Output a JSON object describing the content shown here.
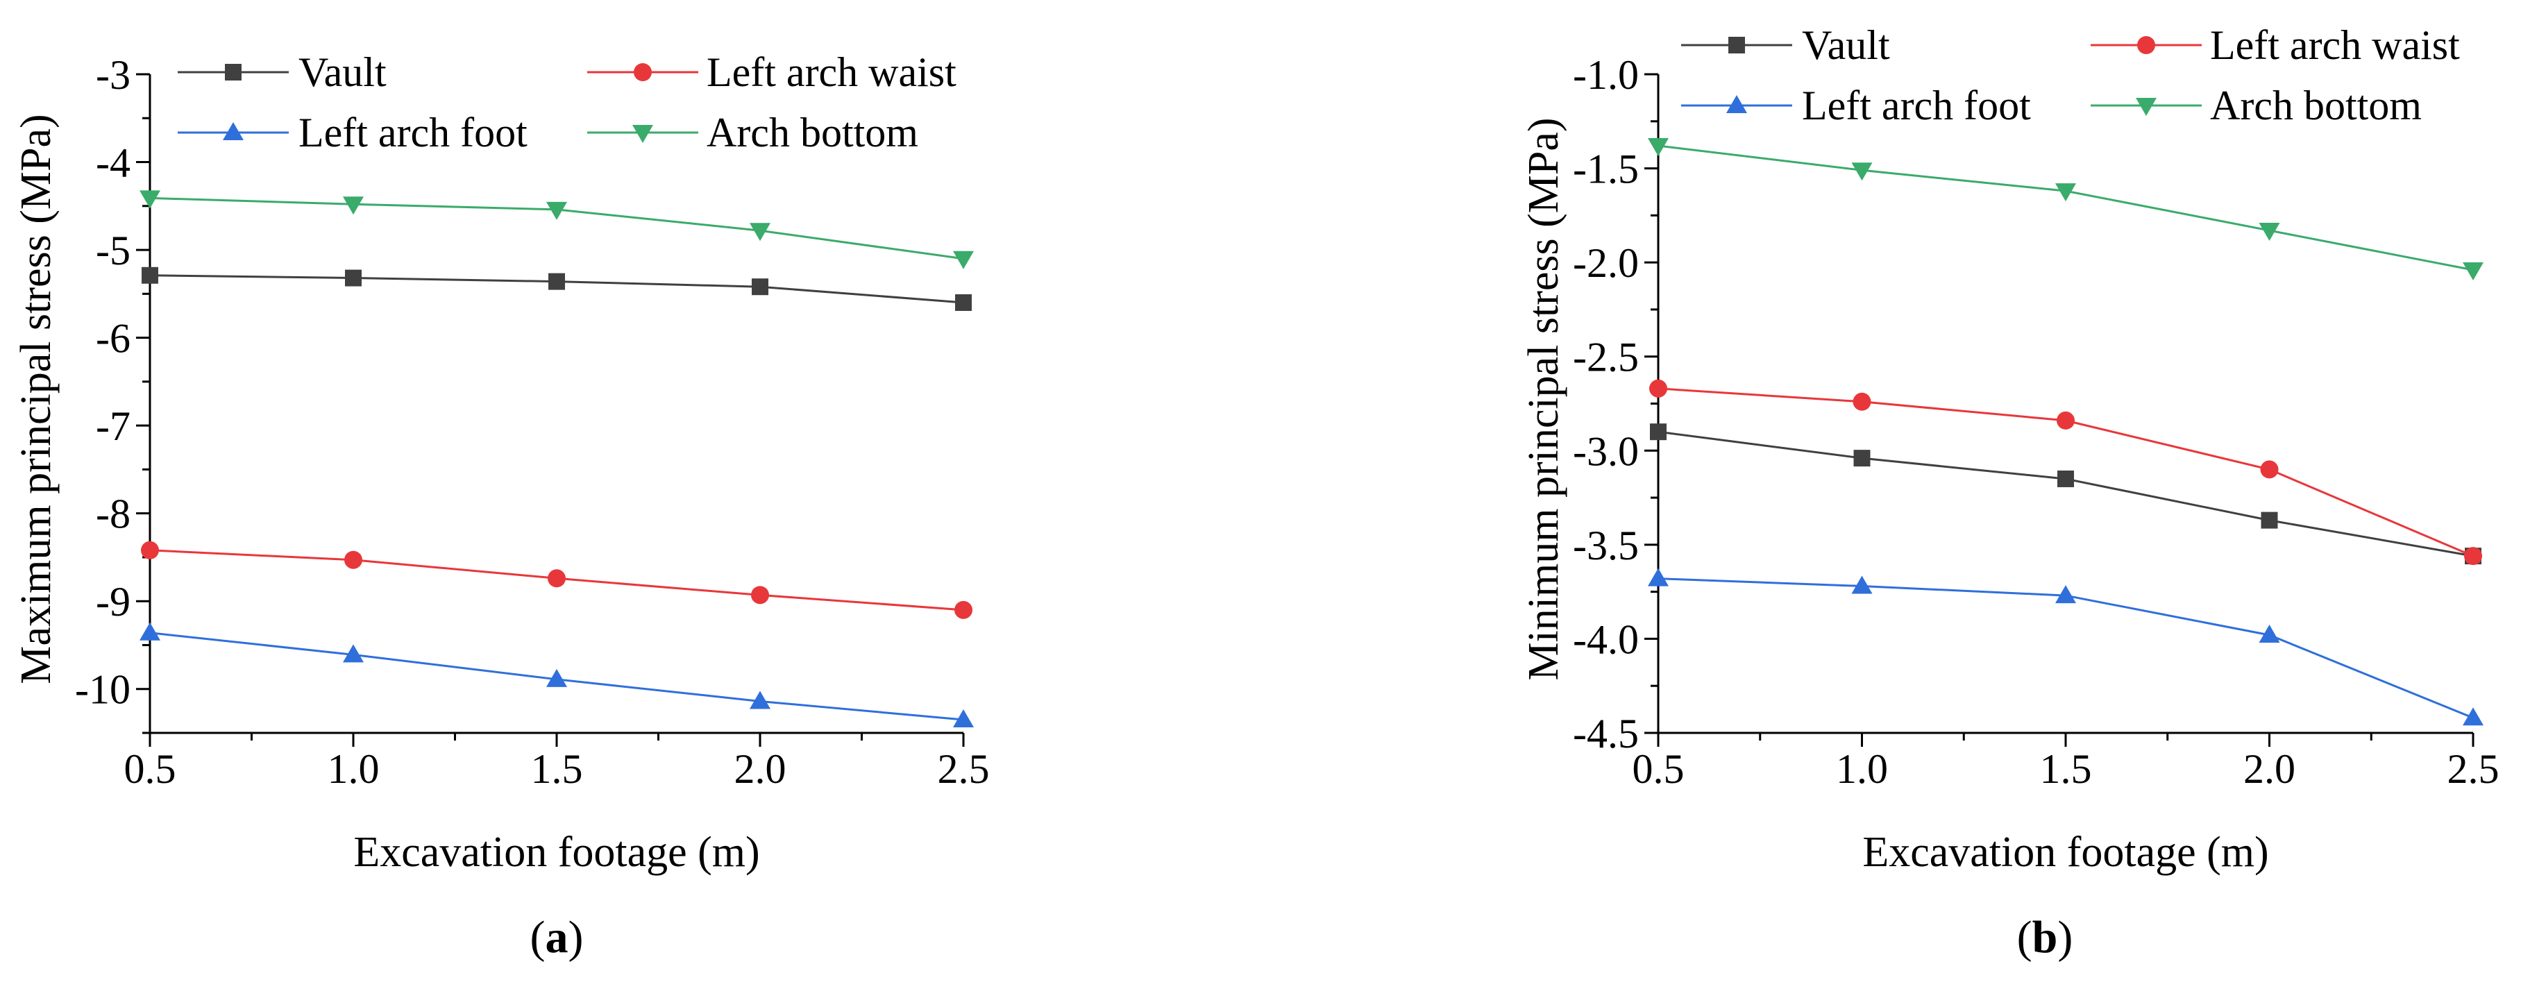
{
  "chart_data": [
    {
      "type": "line",
      "panel_label": "(a)",
      "panel_letter": "a",
      "xlabel": "Excavation footage (m)",
      "ylabel": "Maximum principal stress (MPa)",
      "xlim": [
        0.5,
        2.5
      ],
      "ylim": [
        -10.5,
        -3
      ],
      "xticks": [
        "0.5",
        "1.0",
        "1.5",
        "2.0",
        "2.5"
      ],
      "yticks": [
        "-3",
        "-4",
        "-5",
        "-6",
        "-7",
        "-8",
        "-9",
        "-10"
      ],
      "x": [
        0.5,
        1.0,
        1.5,
        2.0,
        2.5
      ],
      "grid": false,
      "legend_placement": "top",
      "series": [
        {
          "name": "Vault",
          "color": "#404040",
          "marker": "square",
          "values": [
            -5.29,
            -5.32,
            -5.36,
            -5.42,
            -5.6
          ]
        },
        {
          "name": "Left arch waist",
          "color": "#e8373a",
          "marker": "circle",
          "values": [
            -8.42,
            -8.53,
            -8.74,
            -8.93,
            -9.1
          ]
        },
        {
          "name": "Left arch foot",
          "color": "#2f6fdb",
          "marker": "triangle-up",
          "values": [
            -9.36,
            -9.61,
            -9.89,
            -10.14,
            -10.35
          ]
        },
        {
          "name": "Arch bottom",
          "color": "#3aab6a",
          "marker": "triangle-down",
          "values": [
            -4.41,
            -4.48,
            -4.54,
            -4.78,
            -5.1
          ]
        }
      ]
    },
    {
      "type": "line",
      "panel_label": "(b)",
      "panel_letter": "b",
      "xlabel": "Excavation footage (m)",
      "ylabel": "Minimum principal stress (MPa)",
      "xlim": [
        0.5,
        2.5
      ],
      "ylim": [
        -4.5,
        -1.0
      ],
      "xticks": [
        "0.5",
        "1.0",
        "1.5",
        "2.0",
        "2.5"
      ],
      "yticks": [
        "-1.0",
        "-1.5",
        "-2.0",
        "-2.5",
        "-3.0",
        "-3.5",
        "-4.0",
        "-4.5"
      ],
      "x": [
        0.5,
        1.0,
        1.5,
        2.0,
        2.5
      ],
      "grid": false,
      "legend_placement": "top",
      "series": [
        {
          "name": "Vault",
          "color": "#404040",
          "marker": "square",
          "values": [
            -2.9,
            -3.04,
            -3.15,
            -3.37,
            -3.56
          ]
        },
        {
          "name": "Left arch waist",
          "color": "#e8373a",
          "marker": "circle",
          "values": [
            -2.67,
            -2.74,
            -2.84,
            -3.1,
            -3.56
          ]
        },
        {
          "name": "Left arch foot",
          "color": "#2f6fdb",
          "marker": "triangle-up",
          "values": [
            -3.68,
            -3.72,
            -3.77,
            -3.98,
            -4.42
          ]
        },
        {
          "name": "Arch bottom",
          "color": "#3aab6a",
          "marker": "triangle-down",
          "values": [
            -1.38,
            -1.51,
            -1.62,
            -1.83,
            -2.04
          ]
        }
      ]
    }
  ]
}
